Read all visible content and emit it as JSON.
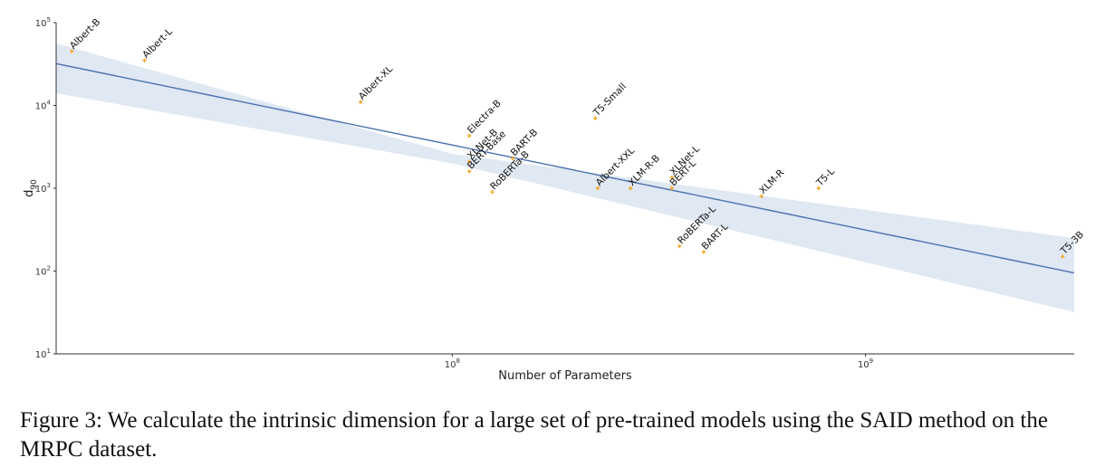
{
  "caption": "Figure 3: We calculate the intrinsic dimension for a large set of pre-trained models using the SAID method on the MRPC dataset.",
  "chart_data": {
    "type": "scatter",
    "xlabel": "Number of Parameters",
    "ylabel_base": "d",
    "ylabel_sub": "90",
    "x_scale": "log",
    "y_scale": "log",
    "xlim": [
      11000000,
      3200000000
    ],
    "ylim": [
      10,
      100000
    ],
    "x_ticks": [
      {
        "value": 100000000,
        "base": "10",
        "exp": "8"
      },
      {
        "value": 1000000000,
        "base": "10",
        "exp": "9"
      }
    ],
    "y_ticks": [
      {
        "value": 10,
        "base": "10",
        "exp": "1"
      },
      {
        "value": 100,
        "base": "10",
        "exp": "2"
      },
      {
        "value": 1000,
        "base": "10",
        "exp": "3"
      },
      {
        "value": 10000,
        "base": "10",
        "exp": "4"
      },
      {
        "value": 100000,
        "base": "10",
        "exp": "5"
      }
    ],
    "grid": false,
    "marker_color": "#f5a623",
    "fit_color": "#4c72b0",
    "band_color": "#dbe4f1",
    "points": [
      {
        "name": "Albert-B",
        "x": 12000000,
        "y": 45000
      },
      {
        "name": "Albert-L",
        "x": 18000000,
        "y": 35000
      },
      {
        "name": "Albert-XL",
        "x": 60000000,
        "y": 11000
      },
      {
        "name": "Electra-B",
        "x": 110000000,
        "y": 4300
      },
      {
        "name": "XLNet-B",
        "x": 110000000,
        "y": 2100
      },
      {
        "name": "BERT-Base",
        "x": 110000000,
        "y": 1600
      },
      {
        "name": "BART-B",
        "x": 140000000,
        "y": 2300
      },
      {
        "name": "RoBERTa-B",
        "x": 125000000,
        "y": 900
      },
      {
        "name": "T5-Small",
        "x": 222000000,
        "y": 7000
      },
      {
        "name": "Albert-XXL",
        "x": 225000000,
        "y": 1000
      },
      {
        "name": "XLM-R-B",
        "x": 270000000,
        "y": 1000
      },
      {
        "name": "XLNet-L",
        "x": 340000000,
        "y": 1350
      },
      {
        "name": "BERT-L",
        "x": 340000000,
        "y": 1000
      },
      {
        "name": "RoBERTa-L",
        "x": 355000000,
        "y": 200
      },
      {
        "name": "BART-L",
        "x": 406000000,
        "y": 170
      },
      {
        "name": "XLM-R",
        "x": 560000000,
        "y": 800
      },
      {
        "name": "T5-L",
        "x": 770000000,
        "y": 1000
      },
      {
        "name": "T5-3B",
        "x": 3000000000,
        "y": 150
      }
    ],
    "fit_line": [
      {
        "x": 11000000,
        "y": 32000
      },
      {
        "x": 3200000000,
        "y": 95
      }
    ],
    "confidence_band": {
      "upper": [
        {
          "x": 11000000,
          "y": 56000
        },
        {
          "x": 100000000,
          "y": 2600
        },
        {
          "x": 3200000000,
          "y": 250
        }
      ],
      "lower": [
        {
          "x": 11000000,
          "y": 14000
        },
        {
          "x": 100000000,
          "y": 2000
        },
        {
          "x": 3200000000,
          "y": 32
        }
      ]
    }
  }
}
